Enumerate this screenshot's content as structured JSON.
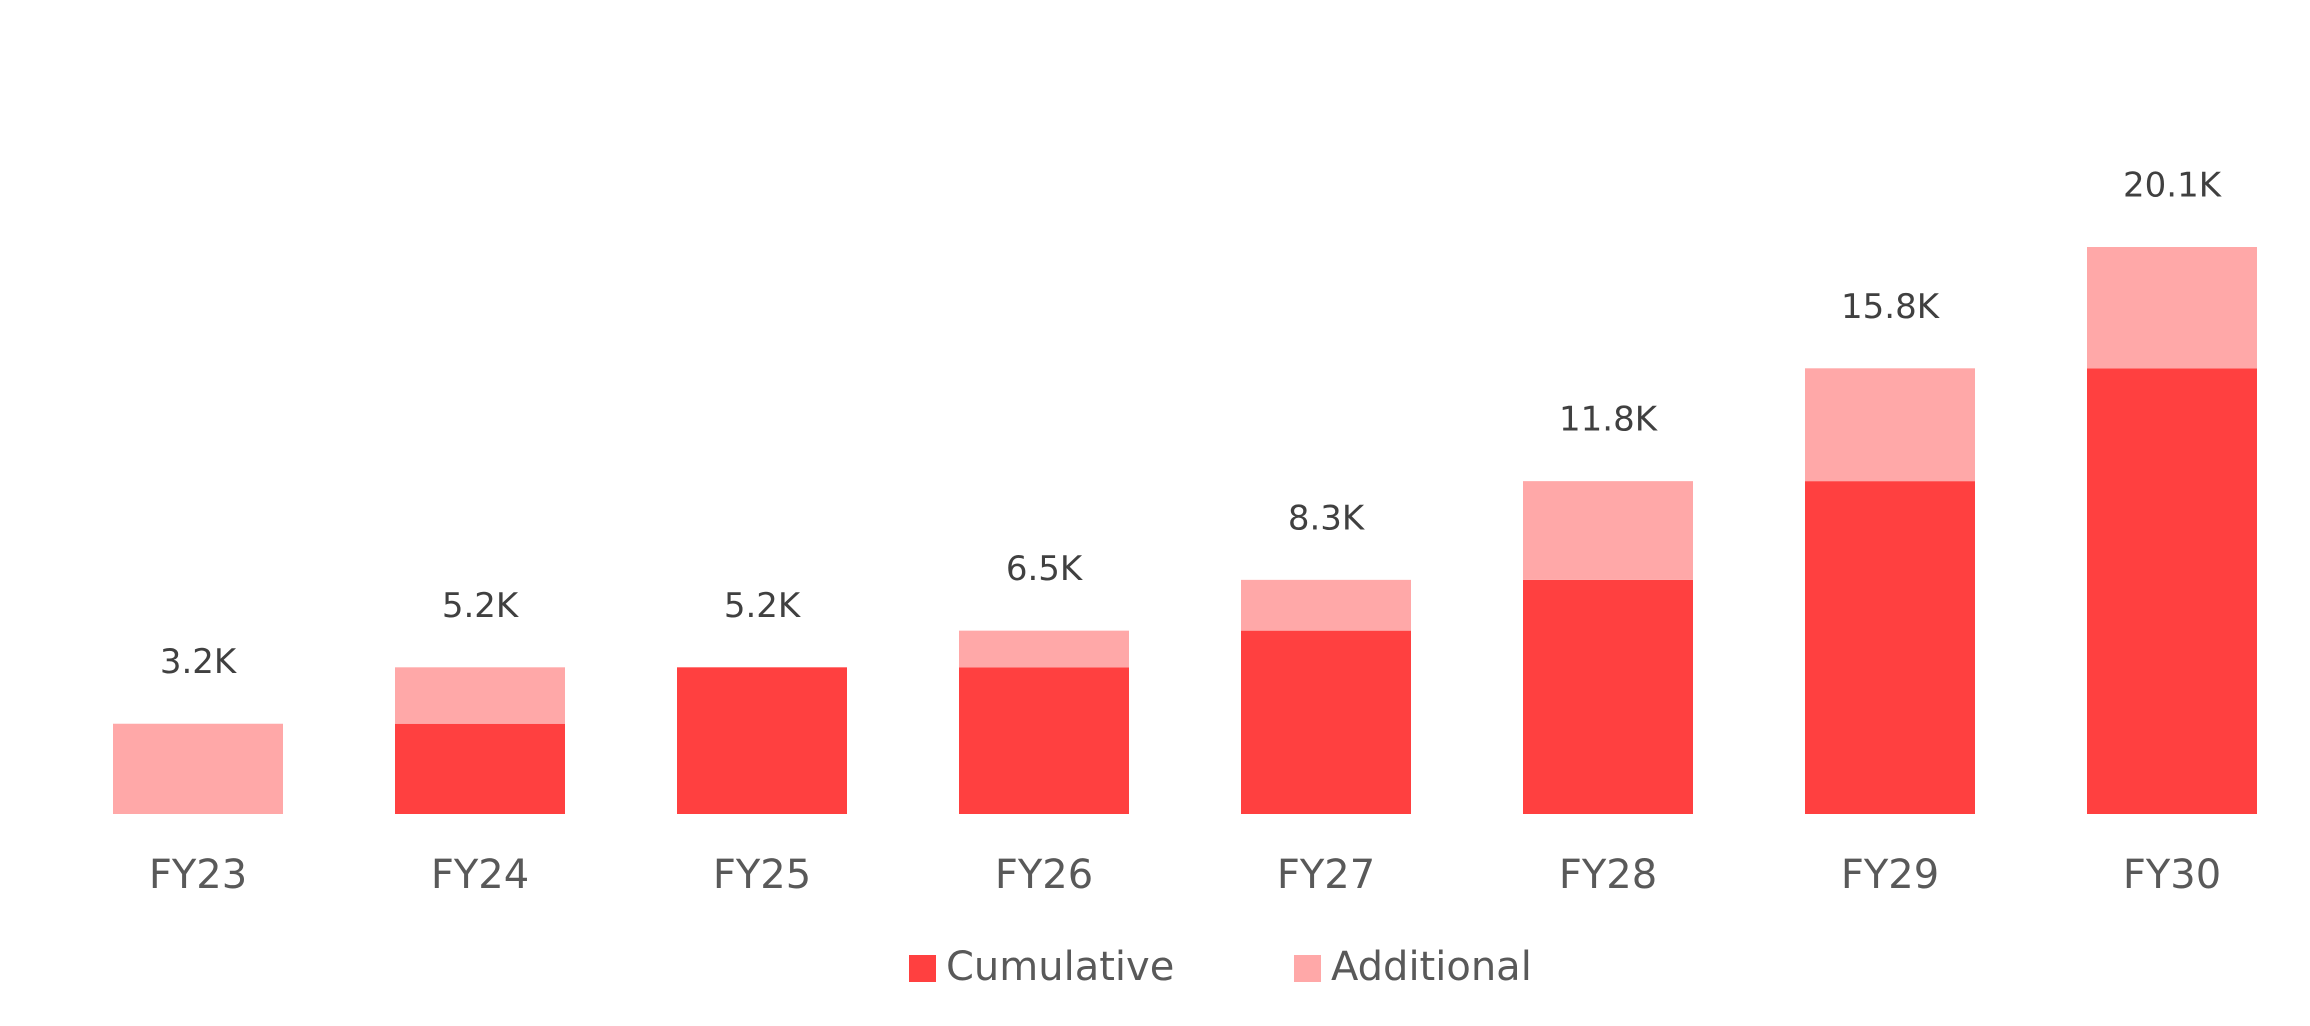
{
  "chart_data": {
    "type": "stacked_bar",
    "categories": [
      "FY23",
      "FY24",
      "FY25",
      "FY26",
      "FY27",
      "FY28",
      "FY29",
      "FY30"
    ],
    "series": [
      {
        "name": "Cumulative",
        "color": "#ff4040",
        "values": [
          0,
          3200,
          5200,
          5200,
          6500,
          8300,
          11800,
          15800
        ]
      },
      {
        "name": "Additional",
        "color": "#ffa8a8",
        "values": [
          3200,
          2000,
          0,
          1300,
          1800,
          3500,
          4000,
          4300
        ]
      }
    ],
    "totals": [
      3200,
      5200,
      5200,
      6500,
      8300,
      11800,
      15800,
      20100
    ],
    "total_labels": [
      "3.2K",
      "5.2K",
      "5.2K",
      "6.5K",
      "8.3K",
      "11.8K",
      "15.8K",
      "20.1K"
    ],
    "legend": "bottom"
  }
}
